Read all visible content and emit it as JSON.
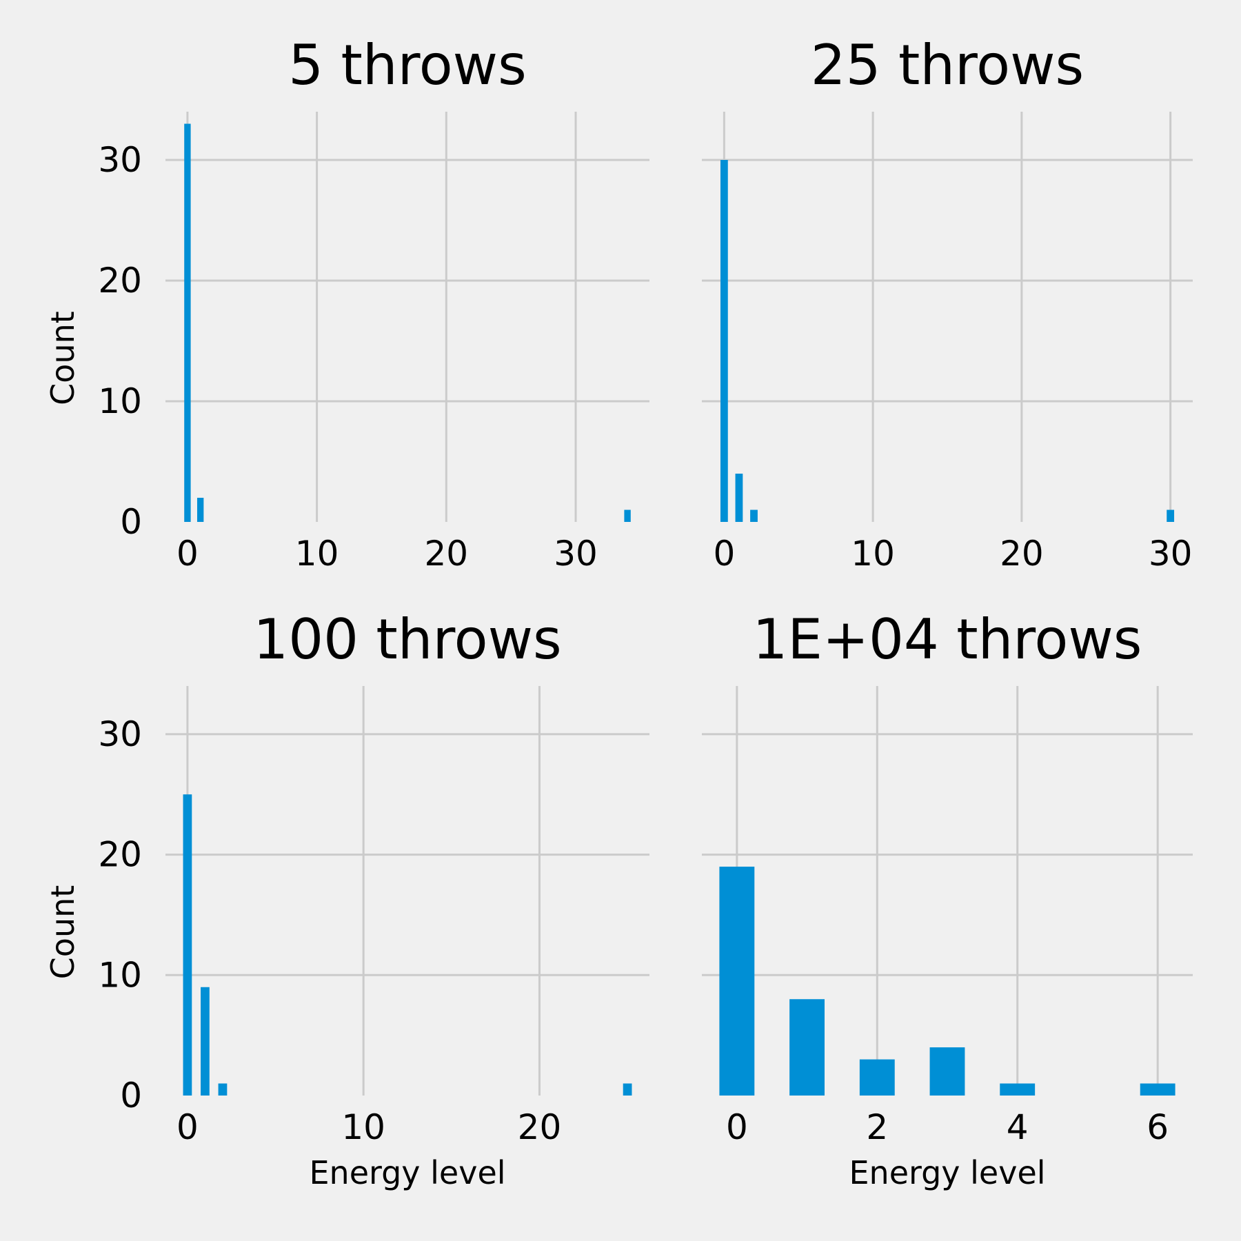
{
  "figure": {
    "background": "#f0f0f0",
    "bar_color": "#008fd5",
    "grid_color": "#cbcbcb"
  },
  "chart_data": [
    {
      "type": "bar",
      "title": "5 throws",
      "xlabel": "",
      "ylabel": "Count",
      "xlim": [
        -1.7,
        35.7
      ],
      "ylim": [
        0,
        34
      ],
      "xticks": [
        0,
        10,
        20,
        30
      ],
      "yticks": [
        0,
        10,
        20,
        30
      ],
      "bar_width": 0.5,
      "x": [
        0,
        1,
        34
      ],
      "values": [
        33,
        2,
        1
      ],
      "grid": true
    },
    {
      "type": "bar",
      "title": "25 throws",
      "xlabel": "",
      "ylabel": "",
      "xlim": [
        -1.5,
        31.5
      ],
      "ylim": [
        0,
        34
      ],
      "xticks": [
        0,
        10,
        20,
        30
      ],
      "yticks": [
        0,
        10,
        20,
        30
      ],
      "bar_width": 0.5,
      "x": [
        0,
        1,
        2,
        30
      ],
      "values": [
        30,
        4,
        1,
        1
      ],
      "grid": true
    },
    {
      "type": "bar",
      "title": "100 throws",
      "xlabel": "Energy level",
      "ylabel": "Count",
      "xlim": [
        -1.25,
        26.25
      ],
      "ylim": [
        0,
        34
      ],
      "xticks": [
        0,
        10,
        20
      ],
      "yticks": [
        0,
        10,
        20,
        30
      ],
      "bar_width": 0.5,
      "x": [
        0,
        1,
        2,
        25
      ],
      "values": [
        25,
        9,
        1,
        1
      ],
      "grid": true
    },
    {
      "type": "bar",
      "title": "1E+04 throws",
      "xlabel": "Energy level",
      "ylabel": "",
      "xlim": [
        -0.5,
        6.5
      ],
      "ylim": [
        0,
        34
      ],
      "xticks": [
        0,
        2,
        4,
        6
      ],
      "yticks": [
        0,
        10,
        20,
        30
      ],
      "bar_width": 0.5,
      "x": [
        0,
        1,
        2,
        3,
        4,
        6
      ],
      "values": [
        19,
        8,
        3,
        4,
        1,
        1
      ],
      "grid": true
    }
  ]
}
